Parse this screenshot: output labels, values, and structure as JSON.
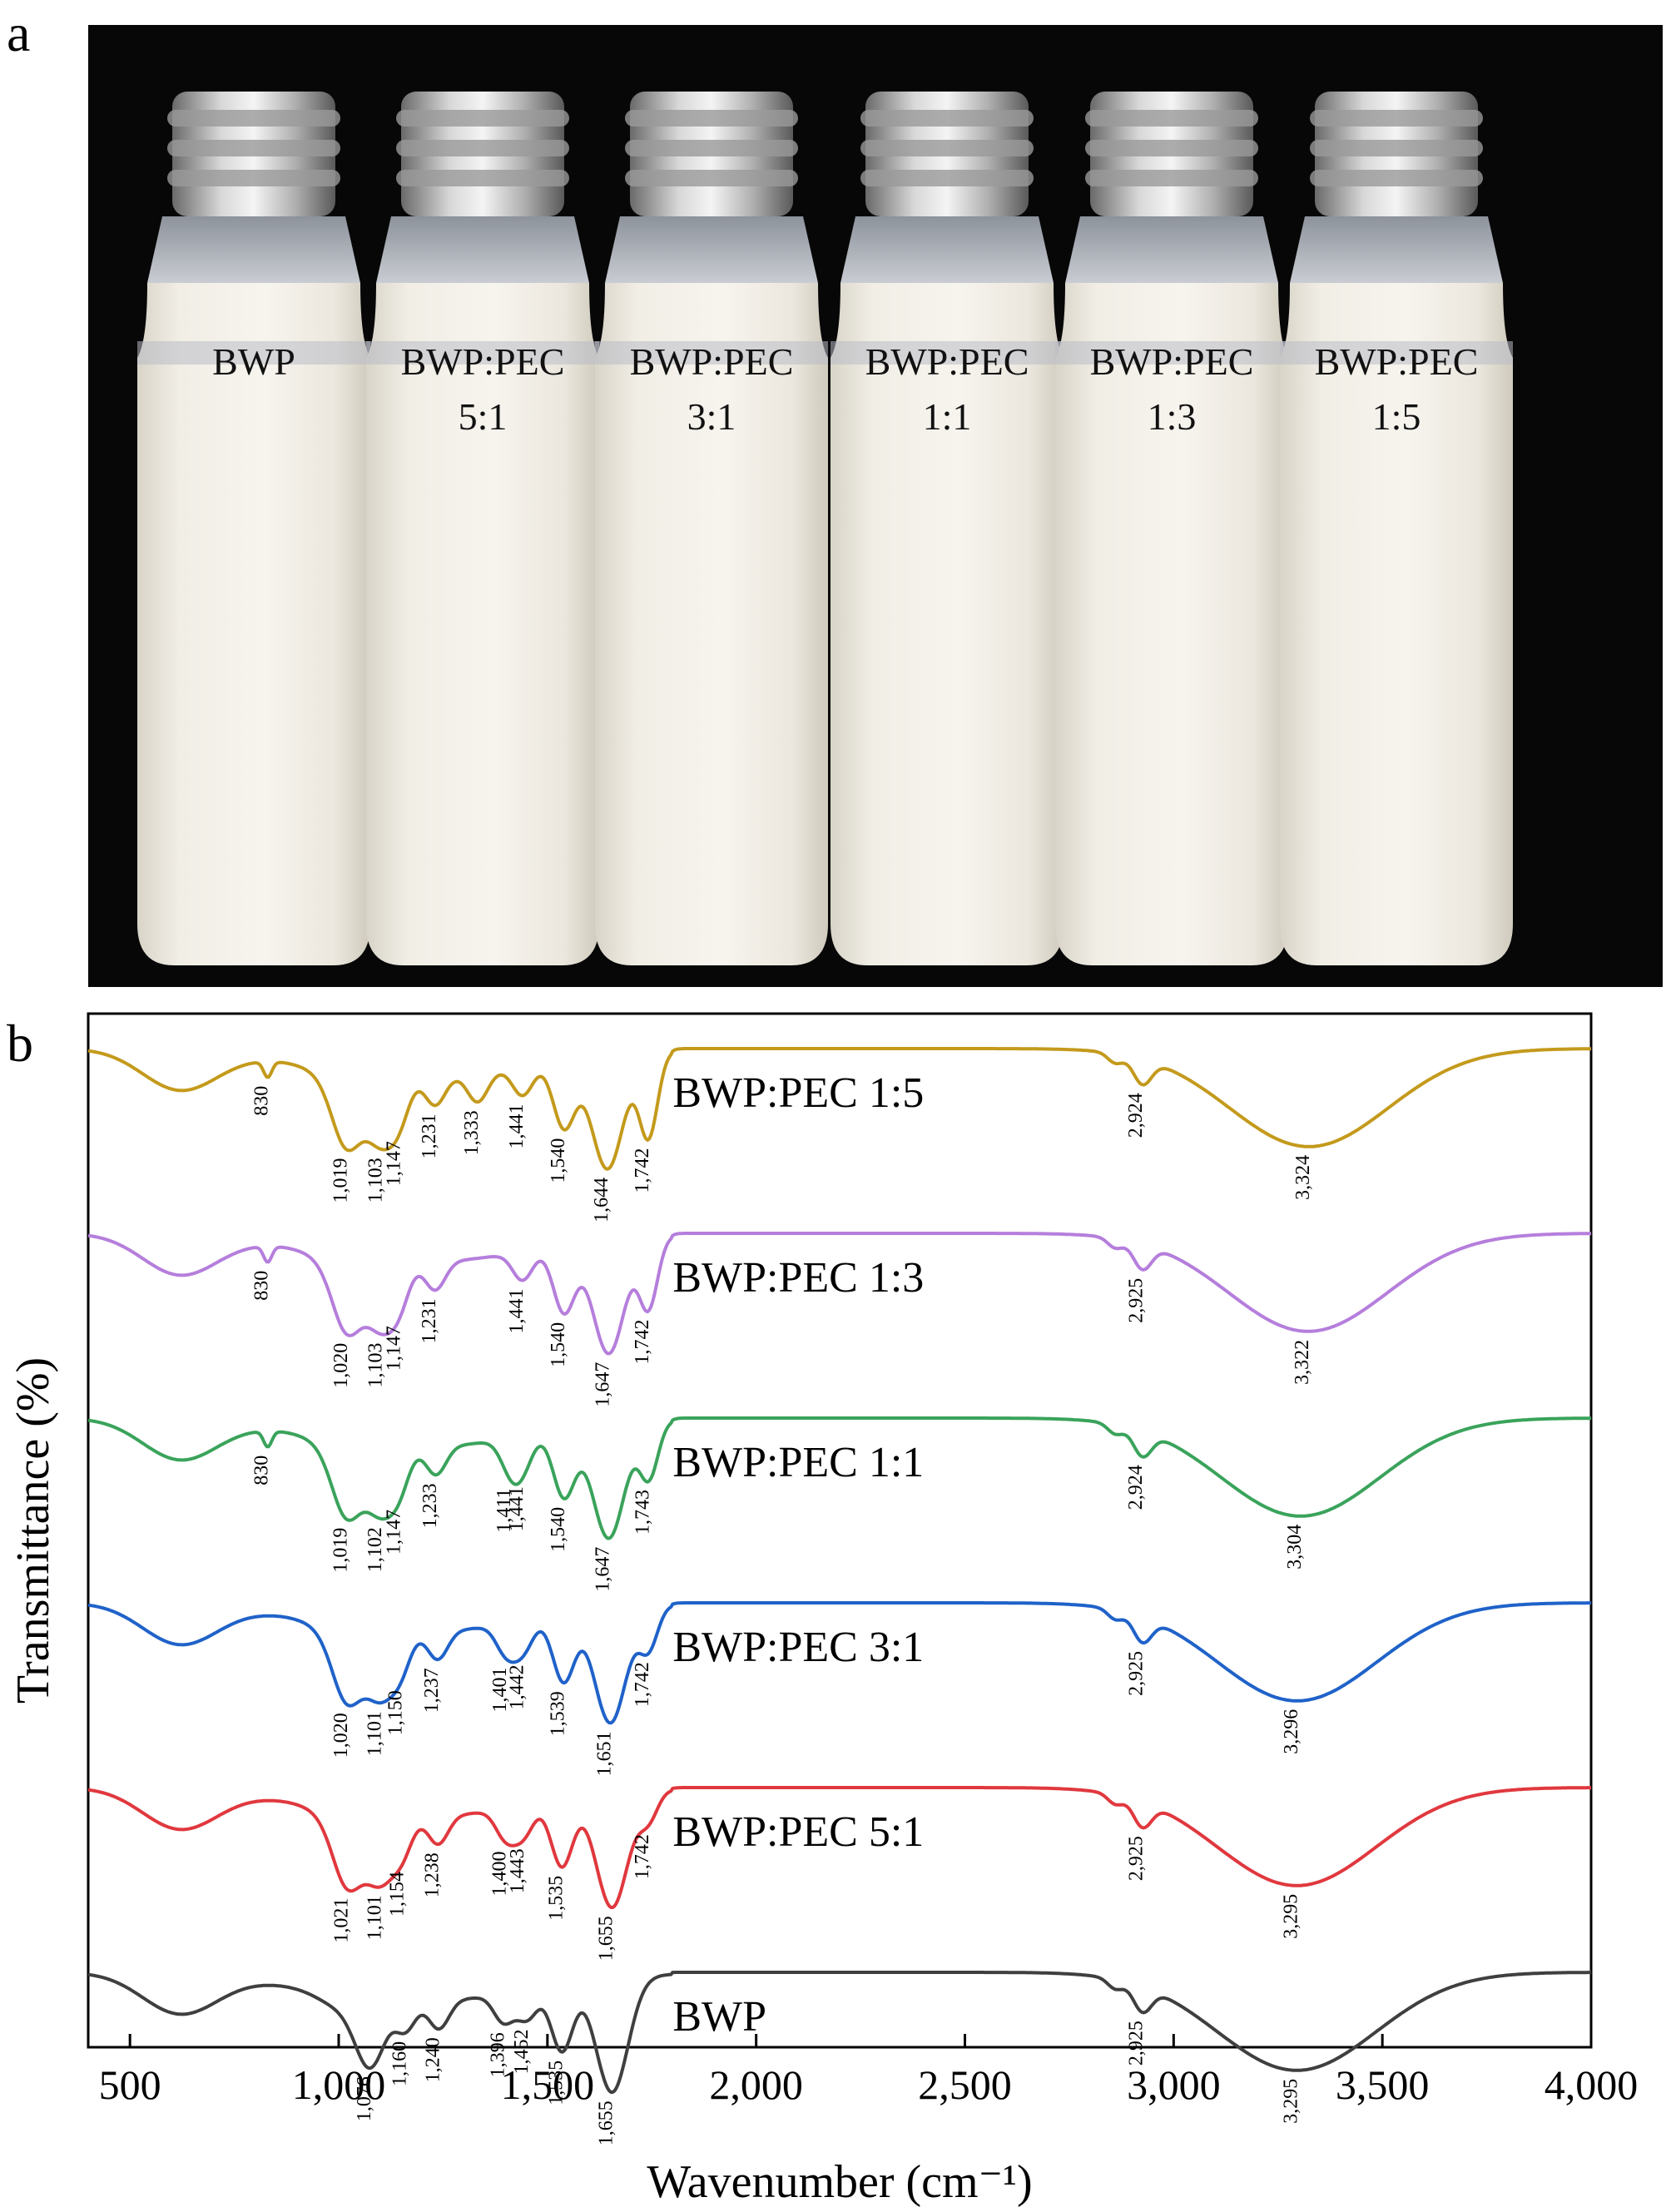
{
  "panel_a": {
    "label": "a",
    "vials": [
      {
        "line1": "BWP",
        "line2": ""
      },
      {
        "line1": "BWP:PEC",
        "line2": "5:1"
      },
      {
        "line1": "BWP:PEC",
        "line2": "3:1"
      },
      {
        "line1": "BWP:PEC",
        "line2": "1:1"
      },
      {
        "line1": "BWP:PEC",
        "line2": "1:3"
      },
      {
        "line1": "BWP:PEC",
        "line2": "1:5"
      }
    ]
  },
  "panel_b": {
    "label": "b"
  },
  "chart_data": {
    "type": "line",
    "xlabel": "Wavenumber (cm⁻¹)",
    "ylabel": "Transmittance (%)",
    "xlim": [
      400,
      4000
    ],
    "xticks": [
      500,
      1000,
      1500,
      2000,
      2500,
      3000,
      3500,
      4000
    ],
    "xtick_labels": [
      "500",
      "1,000",
      "1,500",
      "2,000",
      "2,500",
      "3,000",
      "3,500",
      "4,000"
    ],
    "grid": false,
    "series": [
      {
        "name": "BWP:PEC 1:5",
        "color": "#C49A1C",
        "offset": 5,
        "peaks": [
          {
            "x": 830,
            "label": "830"
          },
          {
            "x": 1019,
            "label": "1,019"
          },
          {
            "x": 1103,
            "label": "1,103"
          },
          {
            "x": 1147,
            "label": "1,147"
          },
          {
            "x": 1231,
            "label": "1,231"
          },
          {
            "x": 1333,
            "label": "1,333"
          },
          {
            "x": 1441,
            "label": "1,441"
          },
          {
            "x": 1540,
            "label": "1,540"
          },
          {
            "x": 1644,
            "label": "1,644"
          },
          {
            "x": 1742,
            "label": "1,742"
          },
          {
            "x": 2924,
            "label": "2,924"
          },
          {
            "x": 3324,
            "label": "3,324"
          }
        ]
      },
      {
        "name": "BWP:PEC 1:3",
        "color": "#B57EDC",
        "offset": 4,
        "peaks": [
          {
            "x": 830,
            "label": "830"
          },
          {
            "x": 1020,
            "label": "1,020"
          },
          {
            "x": 1103,
            "label": "1,103"
          },
          {
            "x": 1147,
            "label": "1,147"
          },
          {
            "x": 1231,
            "label": "1,231"
          },
          {
            "x": 1441,
            "label": "1,441"
          },
          {
            "x": 1540,
            "label": "1,540"
          },
          {
            "x": 1647,
            "label": "1,647"
          },
          {
            "x": 1742,
            "label": "1,742"
          },
          {
            "x": 2925,
            "label": "2,925"
          },
          {
            "x": 3322,
            "label": "3,322"
          }
        ]
      },
      {
        "name": "BWP:PEC 1:1",
        "color": "#3AA35B",
        "offset": 3,
        "peaks": [
          {
            "x": 830,
            "label": "830"
          },
          {
            "x": 1019,
            "label": "1,019"
          },
          {
            "x": 1102,
            "label": "1,102"
          },
          {
            "x": 1147,
            "label": "1,147"
          },
          {
            "x": 1233,
            "label": "1,233"
          },
          {
            "x": 1411,
            "label": "1,411"
          },
          {
            "x": 1441,
            "label": "1,441"
          },
          {
            "x": 1540,
            "label": "1,540"
          },
          {
            "x": 1647,
            "label": "1,647"
          },
          {
            "x": 1743,
            "label": "1,743"
          },
          {
            "x": 2924,
            "label": "2,924"
          },
          {
            "x": 3304,
            "label": "3,304"
          }
        ]
      },
      {
        "name": "BWP:PEC 3:1",
        "color": "#1F62C9",
        "offset": 2,
        "peaks": [
          {
            "x": 1020,
            "label": "1,020"
          },
          {
            "x": 1101,
            "label": "1,101"
          },
          {
            "x": 1150,
            "label": "1,150"
          },
          {
            "x": 1237,
            "label": "1,237"
          },
          {
            "x": 1401,
            "label": "1,401"
          },
          {
            "x": 1442,
            "label": "1,442"
          },
          {
            "x": 1539,
            "label": "1,539"
          },
          {
            "x": 1651,
            "label": "1,651"
          },
          {
            "x": 1742,
            "label": "1,742"
          },
          {
            "x": 2925,
            "label": "2,925"
          },
          {
            "x": 3296,
            "label": "3,296"
          }
        ]
      },
      {
        "name": "BWP:PEC 5:1",
        "color": "#E0383E",
        "offset": 1,
        "peaks": [
          {
            "x": 1021,
            "label": "1,021"
          },
          {
            "x": 1101,
            "label": "1,101"
          },
          {
            "x": 1154,
            "label": "1,154"
          },
          {
            "x": 1238,
            "label": "1,238"
          },
          {
            "x": 1400,
            "label": "1,400"
          },
          {
            "x": 1443,
            "label": "1,443"
          },
          {
            "x": 1535,
            "label": "1,535"
          },
          {
            "x": 1655,
            "label": "1,655"
          },
          {
            "x": 1742,
            "label": "1,742"
          },
          {
            "x": 2925,
            "label": "2,925"
          },
          {
            "x": 3295,
            "label": "3,295"
          }
        ]
      },
      {
        "name": "BWP",
        "color": "#3F3F3F",
        "offset": 0,
        "peaks": [
          {
            "x": 1076,
            "label": "1,076"
          },
          {
            "x": 1160,
            "label": "1,160"
          },
          {
            "x": 1240,
            "label": "1,240"
          },
          {
            "x": 1396,
            "label": "1,396"
          },
          {
            "x": 1452,
            "label": "1,452"
          },
          {
            "x": 1535,
            "label": "1,535"
          },
          {
            "x": 1655,
            "label": "1,655"
          },
          {
            "x": 2925,
            "label": "2,925"
          },
          {
            "x": 3295,
            "label": "3,295"
          }
        ]
      }
    ]
  }
}
